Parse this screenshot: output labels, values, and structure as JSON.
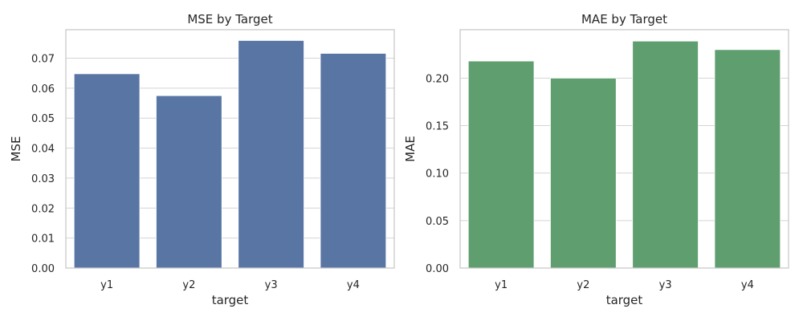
{
  "chart_data": [
    {
      "type": "bar",
      "title": "MSE by Target",
      "xlabel": "target",
      "ylabel": "MSE",
      "categories": [
        "y1",
        "y2",
        "y3",
        "y4"
      ],
      "values": [
        0.0648,
        0.0575,
        0.0759,
        0.0716
      ],
      "ylim": [
        0,
        0.0795
      ],
      "yticks": [
        "0.00",
        "0.01",
        "0.02",
        "0.03",
        "0.04",
        "0.05",
        "0.06",
        "0.07"
      ],
      "ytick_values": [
        0,
        0.01,
        0.02,
        0.03,
        0.04,
        0.05,
        0.06,
        0.07
      ],
      "color": "#5975a4",
      "grid": true
    },
    {
      "type": "bar",
      "title": "MAE by Target",
      "xlabel": "target",
      "ylabel": "MAE",
      "categories": [
        "y1",
        "y2",
        "y3",
        "y4"
      ],
      "values": [
        0.218,
        0.2,
        0.239,
        0.23
      ],
      "ylim": [
        0,
        0.251
      ],
      "yticks": [
        "0.00",
        "0.05",
        "0.10",
        "0.15",
        "0.20"
      ],
      "ytick_values": [
        0,
        0.05,
        0.1,
        0.15,
        0.2
      ],
      "color": "#5f9e6e",
      "grid": true
    }
  ],
  "style": {
    "grid_color": "#d4d4d4",
    "spine_color": "#c8c8c8",
    "text_color": "#262626"
  }
}
